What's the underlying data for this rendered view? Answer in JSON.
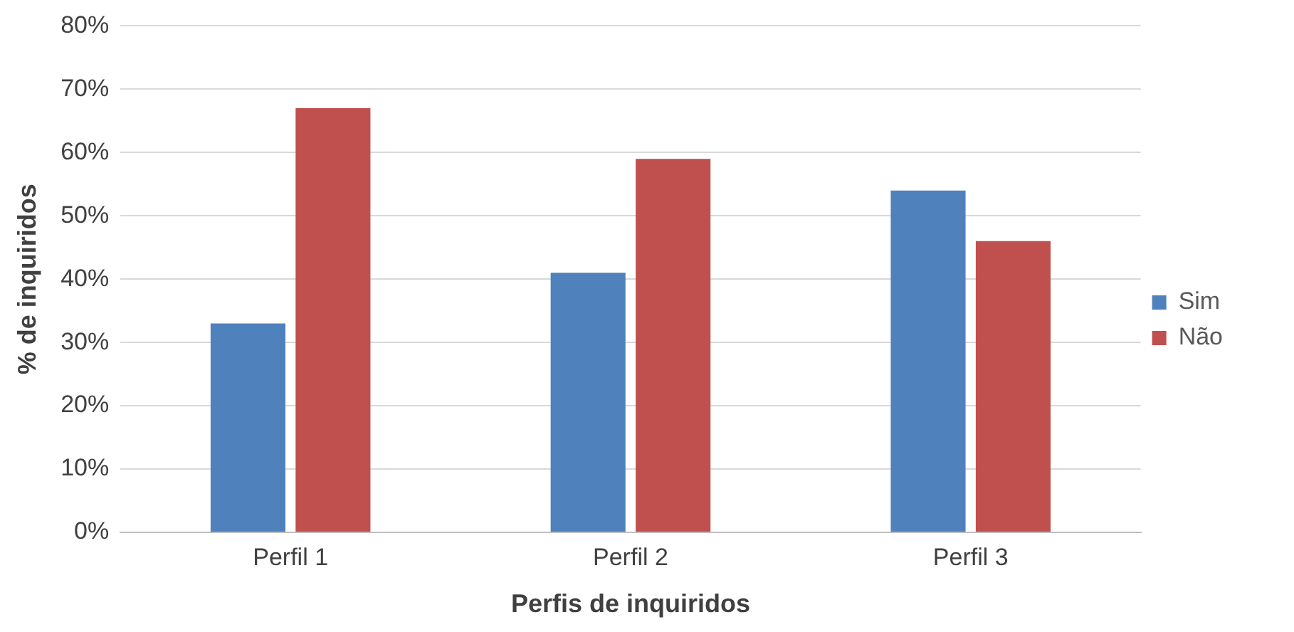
{
  "chart_data": {
    "type": "bar",
    "xlabel": "Perfis de inquiridos",
    "ylabel": "% de inquiridos",
    "categories": [
      "Perfil 1",
      "Perfil 2",
      "Perfil 3"
    ],
    "series": [
      {
        "name": "Sim",
        "color": "#4f81bd",
        "values": [
          33,
          41,
          54
        ]
      },
      {
        "name": "Não",
        "color": "#c0504d",
        "values": [
          67,
          59,
          46
        ]
      }
    ],
    "ylim": [
      0,
      80
    ],
    "yticks": [
      {
        "value": 0,
        "label": "0%"
      },
      {
        "value": 10,
        "label": "10%"
      },
      {
        "value": 20,
        "label": "20%"
      },
      {
        "value": 30,
        "label": "30%"
      },
      {
        "value": 40,
        "label": "40%"
      },
      {
        "value": 50,
        "label": "50%"
      },
      {
        "value": 60,
        "label": "60%"
      },
      {
        "value": 70,
        "label": "70%"
      },
      {
        "value": 80,
        "label": "80%"
      }
    ],
    "grid": "y",
    "legend": "right"
  }
}
